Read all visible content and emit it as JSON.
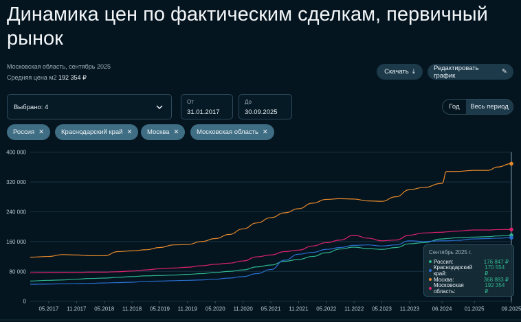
{
  "header": {
    "title": "Динамика цен по фактическим сделкам, первичный рынок",
    "subtitle": "Московская область, сентябрь 2025",
    "avg_label": "Средняя цена м2",
    "avg_value": "192 354 ₽"
  },
  "toolbar": {
    "download_label": "Скачать",
    "edit_label": "Редактировать график"
  },
  "filters": {
    "selected_label": "Выбрано: 4",
    "from_label": "От",
    "from_value": "31.01.2017",
    "to_label": "До",
    "to_value": "30.09.2025",
    "period_options": [
      "Год",
      "Весь период"
    ],
    "period_selected": "Весь период"
  },
  "chips": [
    "Россия",
    "Краснодарский край",
    "Москва",
    "Московская область"
  ],
  "tooltip": {
    "title": "Сентябрь 2025 г.",
    "rows": [
      {
        "name": "Россия:",
        "value": "176 847 ₽",
        "color": "#2fb58f"
      },
      {
        "name": "Краснодарский край:",
        "value": "170 554 ₽",
        "color": "#2a6fd1"
      },
      {
        "name": "Москва:",
        "value": "368 883 ₽",
        "color": "#e8892b"
      },
      {
        "name": "Московская область:",
        "value": "192 354 ₽",
        "color": "#e0226e"
      }
    ]
  },
  "chart_data": {
    "type": "line",
    "grid": true,
    "legend": "none",
    "ylim": [
      0,
      400000
    ],
    "yticks": [
      "0",
      "80 000",
      "160 000",
      "240 000",
      "320 000",
      "400 000"
    ],
    "xlim": [
      "2017-01",
      "2025-09"
    ],
    "xticks": [
      "05.2017",
      "11.2017",
      "05.2018",
      "11.2018",
      "05.2019",
      "11.2019",
      "05.2020",
      "11.2020",
      "05.2021",
      "11.2021",
      "05.2022",
      "11.2022",
      "05.2023",
      "11.2023",
      "06.2024",
      "01.2025",
      "09.2025"
    ],
    "x": [
      "2017-01",
      "2017-05",
      "2017-08",
      "2017-11",
      "2018-02",
      "2018-05",
      "2018-08",
      "2018-11",
      "2019-02",
      "2019-05",
      "2019-08",
      "2019-11",
      "2020-02",
      "2020-05",
      "2020-08",
      "2020-11",
      "2021-02",
      "2021-05",
      "2021-08",
      "2021-11",
      "2022-02",
      "2022-05",
      "2022-08",
      "2022-11",
      "2023-02",
      "2023-05",
      "2023-08",
      "2023-11",
      "2024-02",
      "2024-06",
      "2024-07",
      "2024-09",
      "2025-01",
      "2025-04",
      "2025-06",
      "2025-09"
    ],
    "series": [
      {
        "name": "Москва",
        "color": "#e8892b",
        "values": [
          118000,
          120000,
          125000,
          124000,
          122000,
          122000,
          133000,
          135000,
          138000,
          144000,
          151000,
          152000,
          160000,
          168000,
          179000,
          194000,
          210000,
          224000,
          237000,
          248000,
          263000,
          273000,
          275000,
          274000,
          269000,
          268000,
          280000,
          299000,
          305000,
          316000,
          348000,
          348000,
          351000,
          351000,
          360000,
          368883
        ]
      },
      {
        "name": "Московская область",
        "color": "#e0226e",
        "values": [
          76000,
          77000,
          77000,
          77000,
          78000,
          78000,
          79000,
          81000,
          84000,
          87000,
          89000,
          91000,
          95000,
          99000,
          102000,
          108000,
          119000,
          124000,
          133000,
          137000,
          148000,
          157000,
          164000,
          177000,
          169000,
          162000,
          164000,
          177000,
          183000,
          185000,
          186000,
          188000,
          191000,
          191000,
          192000,
          192354
        ]
      },
      {
        "name": "Россия",
        "color": "#2fb58f",
        "values": [
          54000,
          56000,
          57000,
          59000,
          61000,
          62000,
          64000,
          66000,
          68000,
          69000,
          70000,
          72000,
          74000,
          77000,
          80000,
          84000,
          92000,
          97000,
          107000,
          112000,
          120000,
          130000,
          140000,
          145000,
          141000,
          139000,
          144000,
          154000,
          157000,
          167000,
          168000,
          170000,
          172000,
          173000,
          175000,
          176847
        ]
      },
      {
        "name": "Краснодарский край",
        "color": "#2a6fd1",
        "values": [
          45500,
          46000,
          46500,
          47000,
          48000,
          49000,
          50000,
          51000,
          53000,
          54000,
          55000,
          56000,
          57000,
          59000,
          62000,
          66000,
          74000,
          85000,
          110000,
          126000,
          131000,
          139000,
          144000,
          150000,
          151000,
          148000,
          151000,
          162000,
          160000,
          162000,
          162000,
          163000,
          167000,
          168000,
          169000,
          170554
        ]
      }
    ]
  }
}
